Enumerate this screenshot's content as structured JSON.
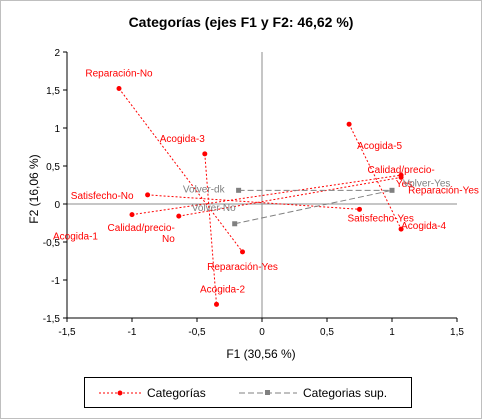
{
  "chart_data": {
    "type": "scatter",
    "title": "Categorías (ejes F1 y F2: 46,62 %)",
    "xlabel": "F1 (30,56 %)",
    "ylabel": "F2 (16,06 %)",
    "xlim": [
      -1.5,
      1.5
    ],
    "ylim": [
      -1.5,
      2
    ],
    "x_ticks": [
      "-1,5",
      "-1",
      "-0,5",
      "0",
      "0,5",
      "1",
      "1,5"
    ],
    "y_ticks": [
      "-1,5",
      "-1",
      "-0,5",
      "0",
      "0,5",
      "1",
      "1,5",
      "2"
    ],
    "x_tick_values": [
      -1.5,
      -1,
      -0.5,
      0,
      0.5,
      1,
      1.5
    ],
    "y_tick_values": [
      -1.5,
      -1,
      -0.5,
      0,
      0.5,
      1,
      1.5,
      2
    ],
    "grid": false,
    "legend_position": "bottom",
    "colors": {
      "categorias": "#ff0000",
      "categorias_sup": "#808080"
    },
    "series": [
      {
        "name": "Categorías",
        "points": [
          {
            "label": "Reparación-No",
            "x": -1.1,
            "y": 1.52
          },
          {
            "label": "Satisfecho-No",
            "x": -0.88,
            "y": 0.12
          },
          {
            "label": "Acogida-3",
            "x": -0.44,
            "y": 0.66
          },
          {
            "label": "Acogida-1",
            "x": -1.0,
            "y": -0.14
          },
          {
            "label": "Calidad/precio-No",
            "x": -0.64,
            "y": -0.16
          },
          {
            "label": "Reparación-Yes",
            "x": -0.15,
            "y": -0.63
          },
          {
            "label": "Acogida-2",
            "x": -0.35,
            "y": -1.32
          },
          {
            "label": "Acogida-5",
            "x": 0.67,
            "y": 1.05
          },
          {
            "label": "Calidad/precio-Yes",
            "x": 1.07,
            "y": 0.38
          },
          {
            "label": "Satisfecho-Yes",
            "x": 0.75,
            "y": -0.07
          },
          {
            "label": "Acogida-4",
            "x": 1.07,
            "y": -0.33
          },
          {
            "label": "Reparación-Yes",
            "x": 1.07,
            "y": 0.35
          }
        ]
      },
      {
        "name": "Categorias sup.",
        "points": [
          {
            "label": "Volver-dk",
            "x": -0.18,
            "y": 0.18
          },
          {
            "label": "Volver-No",
            "x": -0.21,
            "y": -0.26
          },
          {
            "label": "Volver-Yes",
            "x": 1.0,
            "y": 0.18
          }
        ]
      }
    ],
    "lines": {
      "categorias": [
        [
          0,
          5
        ],
        [
          1,
          9
        ],
        [
          2,
          6
        ],
        [
          3,
          8
        ],
        [
          4,
          11
        ],
        [
          7,
          10
        ]
      ],
      "categorias_sup": [
        [
          0,
          2
        ],
        [
          1,
          2
        ]
      ]
    },
    "label_texts": [
      {
        "series": 0,
        "index": 0,
        "text": "Reparación-No",
        "anchor": "middle"
      },
      {
        "series": 0,
        "index": 1,
        "text": "Satisfecho-No",
        "anchor": "end"
      },
      {
        "series": 0,
        "index": 2,
        "text": "Acogida-3",
        "anchor": "end"
      },
      {
        "series": 0,
        "index": 3,
        "text": "Acogida-1",
        "anchor": "end"
      },
      {
        "series": 0,
        "index": 4,
        "text": "Calidad/precio-",
        "anchor": "end"
      },
      {
        "series": 0,
        "index": 4,
        "text": "No",
        "anchor": "end"
      },
      {
        "series": 0,
        "index": 5,
        "text": "Reparación-Yes",
        "anchor": "middle"
      },
      {
        "series": 0,
        "index": 6,
        "text": "Acogida-2",
        "anchor": "middle"
      },
      {
        "series": 0,
        "index": 7,
        "text": "Acogida-5",
        "anchor": "start"
      },
      {
        "series": 0,
        "index": 8,
        "text": "Calidad/precio-",
        "anchor": "middle"
      },
      {
        "series": 0,
        "index": 8,
        "text": "Yes",
        "anchor": "middle"
      },
      {
        "series": 0,
        "index": 9,
        "text": "Satisfecho-Yes",
        "anchor": "start"
      },
      {
        "series": 0,
        "index": 10,
        "text": "Acogida-4",
        "anchor": "start"
      },
      {
        "series": 0,
        "index": 11,
        "text": "Reparación-Yes",
        "anchor": "start"
      },
      {
        "series": 1,
        "index": 0,
        "text": "Volver-dk",
        "anchor": "end"
      },
      {
        "series": 1,
        "index": 1,
        "text": "Volver-No",
        "anchor": "end"
      },
      {
        "series": 1,
        "index": 2,
        "text": "Volver-Yes",
        "anchor": "start"
      }
    ]
  }
}
